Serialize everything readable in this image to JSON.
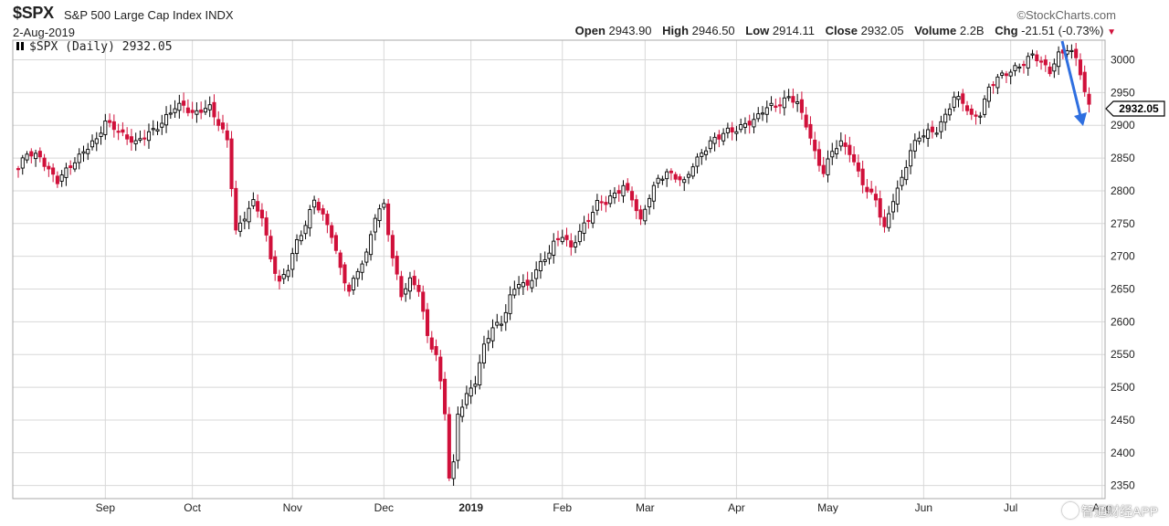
{
  "header": {
    "symbol": "$SPX",
    "name": "S&P 500 Large Cap Index",
    "exchange": "INDX",
    "date": "2-Aug-2019",
    "brand": "©StockCharts.com",
    "open_label": "Open",
    "open": "2943.90",
    "high_label": "High",
    "high": "2946.50",
    "low_label": "Low",
    "low": "2914.11",
    "close_label": "Close",
    "close": "2932.05",
    "volume_label": "Volume",
    "volume": "2.2B",
    "chg_label": "Chg",
    "chg": "-21.51 (-0.73%)"
  },
  "legend": "$SPX (Daily) 2932.05",
  "last_price_label": "2932.05",
  "watermark": "智通财经APP",
  "colors": {
    "up": "#000000",
    "down": "#d0103a",
    "grid": "#d8d8d8",
    "arrow": "#2f6fe0"
  },
  "chart_data": {
    "type": "candlestick",
    "title": "$SPX (Daily) 2932.05",
    "ylim": [
      2330,
      3030
    ],
    "yticks": [
      2350,
      2400,
      2450,
      2500,
      2550,
      2600,
      2650,
      2700,
      2750,
      2800,
      2850,
      2900,
      2950,
      3000
    ],
    "xlim": [
      0,
      248
    ],
    "months": [
      {
        "label": "Sep",
        "index": 20
      },
      {
        "label": "Oct",
        "index": 40
      },
      {
        "label": "Nov",
        "index": 63
      },
      {
        "label": "Dec",
        "index": 84
      },
      {
        "label": "2019",
        "index": 104
      },
      {
        "label": "Feb",
        "index": 125
      },
      {
        "label": "Mar",
        "index": 144
      },
      {
        "label": "Apr",
        "index": 165
      },
      {
        "label": "May",
        "index": 186
      },
      {
        "label": "Jun",
        "index": 208
      },
      {
        "label": "Jul",
        "index": 228
      },
      {
        "label": "Aug",
        "index": 249
      }
    ],
    "close_path": [
      [
        0,
        2830
      ],
      [
        2,
        2858
      ],
      [
        5,
        2855
      ],
      [
        7,
        2830
      ],
      [
        9,
        2812
      ],
      [
        12,
        2840
      ],
      [
        15,
        2862
      ],
      [
        18,
        2875
      ],
      [
        20,
        2905
      ],
      [
        22,
        2900
      ],
      [
        25,
        2880
      ],
      [
        27,
        2870
      ],
      [
        30,
        2890
      ],
      [
        33,
        2905
      ],
      [
        36,
        2925
      ],
      [
        38,
        2930
      ],
      [
        40,
        2920
      ],
      [
        42,
        2925
      ],
      [
        44,
        2925
      ],
      [
        46,
        2900
      ],
      [
        48,
        2880
      ],
      [
        50,
        2740
      ],
      [
        52,
        2760
      ],
      [
        54,
        2780
      ],
      [
        56,
        2760
      ],
      [
        58,
        2700
      ],
      [
        60,
        2660
      ],
      [
        62,
        2680
      ],
      [
        64,
        2720
      ],
      [
        66,
        2750
      ],
      [
        68,
        2790
      ],
      [
        70,
        2760
      ],
      [
        72,
        2730
      ],
      [
        74,
        2680
      ],
      [
        76,
        2650
      ],
      [
        78,
        2680
      ],
      [
        80,
        2700
      ],
      [
        82,
        2760
      ],
      [
        84,
        2780
      ],
      [
        86,
        2700
      ],
      [
        88,
        2640
      ],
      [
        90,
        2660
      ],
      [
        92,
        2650
      ],
      [
        94,
        2580
      ],
      [
        96,
        2550
      ],
      [
        98,
        2460
      ],
      [
        99,
        2360
      ],
      [
        100,
        2380
      ],
      [
        101,
        2460
      ],
      [
        103,
        2490
      ],
      [
        105,
        2510
      ],
      [
        107,
        2560
      ],
      [
        109,
        2590
      ],
      [
        111,
        2600
      ],
      [
        113,
        2640
      ],
      [
        115,
        2660
      ],
      [
        117,
        2650
      ],
      [
        119,
        2680
      ],
      [
        121,
        2700
      ],
      [
        123,
        2720
      ],
      [
        125,
        2730
      ],
      [
        127,
        2710
      ],
      [
        129,
        2740
      ],
      [
        131,
        2760
      ],
      [
        133,
        2780
      ],
      [
        135,
        2780
      ],
      [
        137,
        2795
      ],
      [
        139,
        2810
      ],
      [
        141,
        2790
      ],
      [
        143,
        2750
      ],
      [
        145,
        2790
      ],
      [
        147,
        2820
      ],
      [
        149,
        2830
      ],
      [
        151,
        2820
      ],
      [
        153,
        2810
      ],
      [
        155,
        2840
      ],
      [
        157,
        2860
      ],
      [
        159,
        2875
      ],
      [
        161,
        2880
      ],
      [
        163,
        2890
      ],
      [
        165,
        2895
      ],
      [
        167,
        2905
      ],
      [
        169,
        2905
      ],
      [
        171,
        2920
      ],
      [
        173,
        2930
      ],
      [
        175,
        2935
      ],
      [
        177,
        2945
      ],
      [
        179,
        2930
      ],
      [
        181,
        2900
      ],
      [
        183,
        2860
      ],
      [
        185,
        2830
      ],
      [
        187,
        2860
      ],
      [
        189,
        2870
      ],
      [
        191,
        2860
      ],
      [
        193,
        2830
      ],
      [
        195,
        2800
      ],
      [
        197,
        2785
      ],
      [
        198,
        2760
      ],
      [
        199,
        2740
      ],
      [
        201,
        2790
      ],
      [
        203,
        2820
      ],
      [
        205,
        2860
      ],
      [
        207,
        2880
      ],
      [
        209,
        2890
      ],
      [
        211,
        2895
      ],
      [
        213,
        2915
      ],
      [
        215,
        2940
      ],
      [
        217,
        2935
      ],
      [
        219,
        2915
      ],
      [
        221,
        2920
      ],
      [
        223,
        2955
      ],
      [
        225,
        2970
      ],
      [
        227,
        2980
      ],
      [
        229,
        2990
      ],
      [
        231,
        2995
      ],
      [
        233,
        3005
      ],
      [
        235,
        2995
      ],
      [
        237,
        2985
      ],
      [
        239,
        3010
      ],
      [
        241,
        3015
      ],
      [
        243,
        3000
      ],
      [
        244,
        2980
      ],
      [
        245,
        2950
      ],
      [
        246,
        2932
      ]
    ],
    "last_price": 2932.05
  }
}
